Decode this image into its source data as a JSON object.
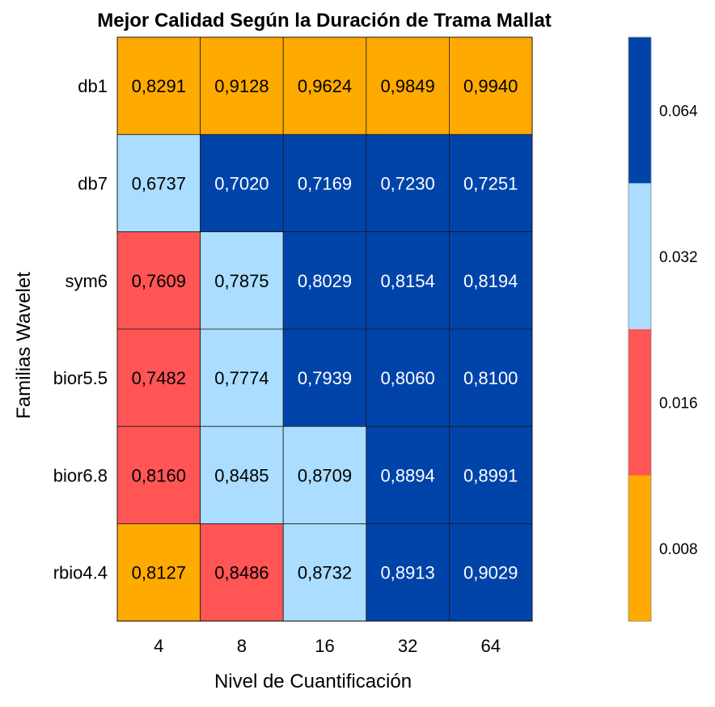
{
  "chart_data": {
    "type": "heatmap",
    "title": "Mejor Calidad Según la Duración de Trama Mallat",
    "xlabel": "Nivel de Cuantificación",
    "ylabel": "Familias Wavelet",
    "x_categories": [
      "4",
      "8",
      "16",
      "32",
      "64"
    ],
    "y_categories": [
      "db1",
      "db7",
      "sym6",
      "bior5.5",
      "bior6.8",
      "rbio4.4"
    ],
    "values": [
      [
        "0,8291",
        "0,9128",
        "0,9624",
        "0,9849",
        "0,9940"
      ],
      [
        "0,6737",
        "0,7020",
        "0,7169",
        "0,7230",
        "0,7251"
      ],
      [
        "0,7609",
        "0,7875",
        "0,8029",
        "0,8154",
        "0,8194"
      ],
      [
        "0,7482",
        "0,7774",
        "0,7939",
        "0,8060",
        "0,8100"
      ],
      [
        "0,8160",
        "0,8485",
        "0,8709",
        "0,8894",
        "0,8991"
      ],
      [
        "0,8127",
        "0,8486",
        "0,8732",
        "0,8913",
        "0,9029"
      ]
    ],
    "color_index": [
      [
        0,
        0,
        0,
        0,
        0
      ],
      [
        2,
        3,
        3,
        3,
        3
      ],
      [
        1,
        2,
        3,
        3,
        3
      ],
      [
        1,
        2,
        3,
        3,
        3
      ],
      [
        1,
        2,
        2,
        3,
        3
      ],
      [
        0,
        1,
        2,
        3,
        3
      ]
    ],
    "colorbar": {
      "colors": [
        "#ffaa00",
        "#ff5555",
        "#aaddff",
        "#0044aa"
      ],
      "tick_labels": [
        "0.008",
        "0.016",
        "0.032",
        "0.064"
      ]
    },
    "label_colors": {
      "dark": "#ffffff",
      "light": "#000000"
    },
    "grid": true,
    "legend": "colorbar-right"
  }
}
